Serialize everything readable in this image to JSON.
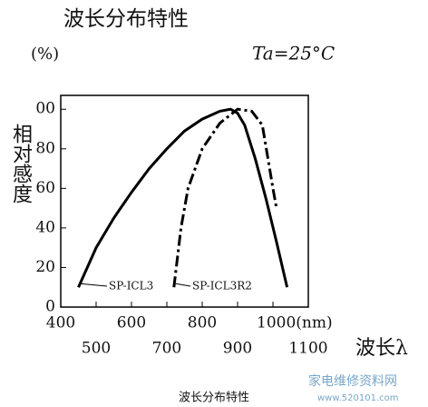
{
  "chart_data": {
    "type": "line",
    "title": "波长分布特性",
    "y_unit": "(%)",
    "annotation": "Ta=25°C",
    "y_label": "相对感度",
    "x_label": "波长λ",
    "caption": "波长分布特性",
    "watermark": "家电维修资料网",
    "watermark_url": "www.520101.com",
    "xlim": [
      400,
      1100
    ],
    "ylim": [
      0,
      107
    ],
    "xticks": [
      400,
      500,
      600,
      700,
      800,
      900,
      {
        "value": 1000,
        "label": "1000(nm)"
      },
      1100
    ],
    "yticks": [
      0,
      20,
      40,
      60,
      80,
      {
        "value": 100,
        "label": "00"
      }
    ],
    "series": [
      {
        "name": "SP-ICL3",
        "color": "#000000",
        "dash": "solid",
        "x": [
          450,
          500,
          550,
          600,
          650,
          700,
          750,
          800,
          850,
          880,
          900,
          920,
          950,
          980,
          1010,
          1040
        ],
        "values": [
          10,
          30,
          45,
          58,
          70,
          80,
          89,
          95,
          99,
          100,
          98,
          92,
          75,
          55,
          33,
          10
        ]
      },
      {
        "name": "SP-ICL3R2",
        "color": "#000000",
        "dash": "dashdot",
        "x": [
          720,
          740,
          760,
          800,
          850,
          900,
          940,
          970,
          1000,
          1010
        ],
        "values": [
          10,
          40,
          60,
          80,
          93,
          100,
          99,
          92,
          60,
          50
        ]
      }
    ]
  }
}
